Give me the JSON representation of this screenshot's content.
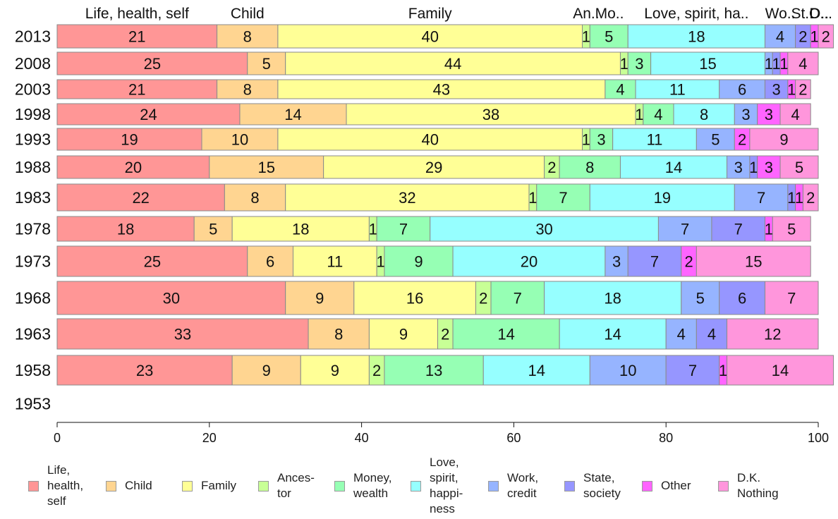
{
  "chart_data": {
    "type": "bar",
    "orientation": "horizontal",
    "stacked": true,
    "title": "",
    "xlabel": "",
    "ylabel": "",
    "xlim": [
      0,
      100
    ],
    "x_ticks": [
      "0",
      "20",
      "40",
      "60",
      "80",
      "100"
    ],
    "grid": false,
    "legend_position": "bottom",
    "categories": [
      "2013",
      "2008",
      "2003",
      "1998",
      "1993",
      "1988",
      "1983",
      "1978",
      "1973",
      "1968",
      "1963",
      "1958",
      "1953"
    ],
    "top_labels": [
      "Life, health, self",
      "Child",
      "Family",
      "An..",
      "Mo..",
      "Love, spirit, ha..",
      "Wo..",
      "St..",
      "O..",
      "D..."
    ],
    "series": [
      {
        "name": "Life,\nhealth,\nself",
        "color": "#ff9696",
        "values": [
          21,
          25,
          21,
          24,
          19,
          20,
          22,
          18,
          25,
          30,
          33,
          23,
          null
        ]
      },
      {
        "name": "Child",
        "color": "#ffd591",
        "values": [
          8,
          5,
          8,
          14,
          10,
          15,
          8,
          5,
          6,
          9,
          8,
          9,
          null
        ]
      },
      {
        "name": "Family",
        "color": "#ffff96",
        "values": [
          40,
          44,
          43,
          38,
          40,
          29,
          32,
          18,
          11,
          16,
          9,
          9,
          null
        ]
      },
      {
        "name": "Ances-\ntor",
        "color": "#c8ff96",
        "values": [
          1,
          1,
          0,
          1,
          1,
          2,
          1,
          1,
          1,
          2,
          2,
          2,
          null
        ]
      },
      {
        "name": "Money,\nwealth",
        "color": "#96ffb4",
        "values": [
          5,
          3,
          4,
          4,
          3,
          8,
          7,
          7,
          9,
          7,
          14,
          13,
          null
        ]
      },
      {
        "name": "Love,\nspirit,\nhappi-\nness",
        "color": "#96ffff",
        "values": [
          18,
          15,
          11,
          8,
          11,
          14,
          19,
          30,
          20,
          18,
          14,
          14,
          null
        ]
      },
      {
        "name": "Work,\ncredit",
        "color": "#96b4ff",
        "values": [
          4,
          1,
          6,
          3,
          5,
          3,
          7,
          7,
          3,
          5,
          4,
          10,
          null
        ]
      },
      {
        "name": "State,\nsociety",
        "color": "#9696ff",
        "values": [
          2,
          1,
          3,
          0,
          0,
          1,
          1,
          7,
          7,
          6,
          4,
          7,
          null
        ]
      },
      {
        "name": "Other",
        "color": "#ff64ff",
        "values": [
          1,
          1,
          1,
          3,
          2,
          3,
          1,
          1,
          2,
          0,
          0,
          1,
          null
        ]
      },
      {
        "name": "D.K.\nNothing",
        "color": "#ff96dc",
        "values": [
          2,
          4,
          2,
          4,
          9,
          5,
          2,
          5,
          15,
          7,
          12,
          14,
          null
        ]
      }
    ]
  }
}
